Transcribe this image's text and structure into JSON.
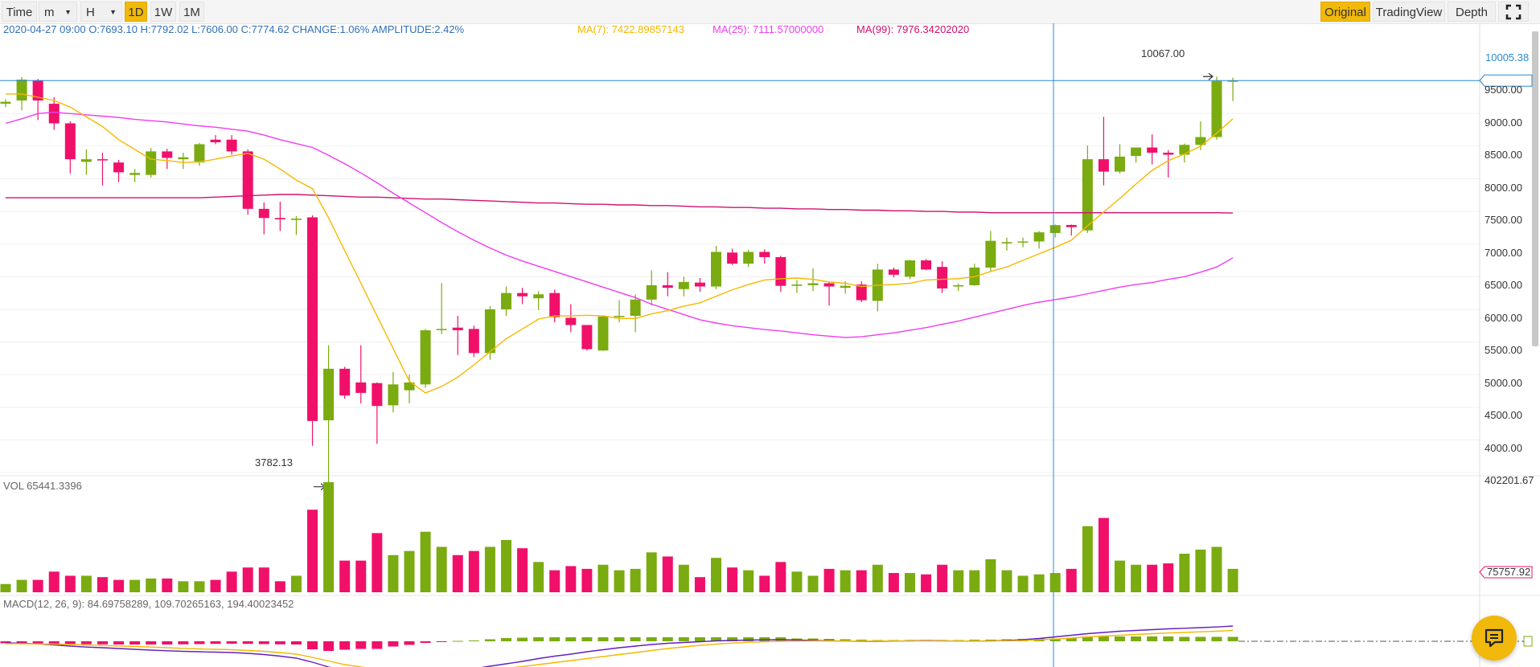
{
  "toolbar": {
    "time_label": "Time",
    "minute_select": "m",
    "hour_select": "H",
    "intervals": [
      "1D",
      "1W",
      "1M"
    ],
    "active_interval": "1D",
    "views": [
      "Original",
      "TradingView",
      "Depth"
    ],
    "active_view": "Original"
  },
  "info": {
    "bar": "2020-04-27 09:00  O:7693.10 H:7792.02 L:7606.00 C:7774.62 CHANGE:1.06% AMPLITUDE:2.42%",
    "ma7": "MA(7): 7422.89857143",
    "ma25": "MA(25): 7111.57000000",
    "ma99": "MA(99): 7976.34202020"
  },
  "price_axis": {
    "ticks": [
      "9500.00",
      "9000.00",
      "8500.00",
      "8000.00",
      "7500.00",
      "7000.00",
      "6500.00",
      "6000.00",
      "5500.00",
      "5000.00",
      "4500.00",
      "4000.00"
    ],
    "current_label": "10005.38",
    "high_label": "10067.00",
    "low_label": "3782.13"
  },
  "volume": {
    "label": "VOL 65441.3396",
    "max_label": "402201.67",
    "current_label": "75757.92"
  },
  "macd": {
    "label": "MACD(12, 26, 9): 84.69758289, 109.70265163, 194.40023452"
  },
  "colors": {
    "up": "#7aab10",
    "down": "#f0106a",
    "ma7": "#f5b800",
    "ma25": "#f03cf0",
    "ma99": "#d01070",
    "crosshair": "#2a8ad4",
    "accent": "#f0b90b"
  },
  "chart_data": {
    "type": "candlestick",
    "candles": [
      {
        "o": 9650,
        "h": 9720,
        "l": 9600,
        "c": 9680
      },
      {
        "o": 9700,
        "h": 10060,
        "l": 9550,
        "c": 10020
      },
      {
        "o": 10010,
        "h": 10030,
        "l": 9400,
        "c": 9700
      },
      {
        "o": 9650,
        "h": 9750,
        "l": 9250,
        "c": 9350
      },
      {
        "o": 9350,
        "h": 9380,
        "l": 8580,
        "c": 8800
      },
      {
        "o": 8760,
        "h": 8950,
        "l": 8560,
        "c": 8800
      },
      {
        "o": 8800,
        "h": 8900,
        "l": 8400,
        "c": 8790
      },
      {
        "o": 8750,
        "h": 8790,
        "l": 8450,
        "c": 8600
      },
      {
        "o": 8560,
        "h": 8650,
        "l": 8450,
        "c": 8590
      },
      {
        "o": 8560,
        "h": 8970,
        "l": 8520,
        "c": 8920
      },
      {
        "o": 8920,
        "h": 8960,
        "l": 8650,
        "c": 8820
      },
      {
        "o": 8800,
        "h": 8900,
        "l": 8650,
        "c": 8830
      },
      {
        "o": 8750,
        "h": 9050,
        "l": 8700,
        "c": 9030
      },
      {
        "o": 9100,
        "h": 9170,
        "l": 9030,
        "c": 9060
      },
      {
        "o": 9100,
        "h": 9170,
        "l": 8870,
        "c": 8920
      },
      {
        "o": 8920,
        "h": 8950,
        "l": 7950,
        "c": 8040
      },
      {
        "o": 8040,
        "h": 8140,
        "l": 7650,
        "c": 7900
      },
      {
        "o": 7900,
        "h": 8150,
        "l": 7700,
        "c": 7880
      },
      {
        "o": 7870,
        "h": 7930,
        "l": 7640,
        "c": 7890
      },
      {
        "o": 7910,
        "h": 7940,
        "l": 4410,
        "c": 4790
      },
      {
        "o": 4800,
        "h": 5950,
        "l": 3782.13,
        "c": 5590
      },
      {
        "o": 5590,
        "h": 5620,
        "l": 5130,
        "c": 5180
      },
      {
        "o": 5380,
        "h": 5950,
        "l": 5060,
        "c": 5220
      },
      {
        "o": 5370,
        "h": 5380,
        "l": 4440,
        "c": 5020
      },
      {
        "o": 5030,
        "h": 5540,
        "l": 4920,
        "c": 5350
      },
      {
        "o": 5260,
        "h": 5500,
        "l": 5060,
        "c": 5380
      },
      {
        "o": 5350,
        "h": 6200,
        "l": 5300,
        "c": 6180
      },
      {
        "o": 6200,
        "h": 6900,
        "l": 6120,
        "c": 6200
      },
      {
        "o": 6220,
        "h": 6400,
        "l": 5800,
        "c": 6180
      },
      {
        "o": 6200,
        "h": 6250,
        "l": 5770,
        "c": 5830
      },
      {
        "o": 5830,
        "h": 6550,
        "l": 5730,
        "c": 6500
      },
      {
        "o": 6500,
        "h": 6850,
        "l": 6400,
        "c": 6750
      },
      {
        "o": 6750,
        "h": 6830,
        "l": 6580,
        "c": 6700
      },
      {
        "o": 6670,
        "h": 6780,
        "l": 6490,
        "c": 6730
      },
      {
        "o": 6750,
        "h": 6800,
        "l": 6300,
        "c": 6380
      },
      {
        "o": 6370,
        "h": 6580,
        "l": 6150,
        "c": 6260
      },
      {
        "o": 6260,
        "h": 6260,
        "l": 5870,
        "c": 5890
      },
      {
        "o": 5870,
        "h": 6410,
        "l": 5860,
        "c": 6390
      },
      {
        "o": 6400,
        "h": 6640,
        "l": 6300,
        "c": 6400
      },
      {
        "o": 6400,
        "h": 6730,
        "l": 6150,
        "c": 6650
      },
      {
        "o": 6650,
        "h": 7100,
        "l": 6560,
        "c": 6870
      },
      {
        "o": 6870,
        "h": 7070,
        "l": 6700,
        "c": 6830
      },
      {
        "o": 6810,
        "h": 7000,
        "l": 6700,
        "c": 6920
      },
      {
        "o": 6910,
        "h": 6980,
        "l": 6770,
        "c": 6850
      },
      {
        "o": 6850,
        "h": 7470,
        "l": 6810,
        "c": 7380
      },
      {
        "o": 7370,
        "h": 7430,
        "l": 7180,
        "c": 7200
      },
      {
        "o": 7200,
        "h": 7410,
        "l": 7150,
        "c": 7380
      },
      {
        "o": 7380,
        "h": 7420,
        "l": 7200,
        "c": 7300
      },
      {
        "o": 7300,
        "h": 7320,
        "l": 6770,
        "c": 6860
      },
      {
        "o": 6860,
        "h": 6950,
        "l": 6750,
        "c": 6880
      },
      {
        "o": 6870,
        "h": 7130,
        "l": 6780,
        "c": 6900
      },
      {
        "o": 6900,
        "h": 6920,
        "l": 6560,
        "c": 6850
      },
      {
        "o": 6830,
        "h": 6930,
        "l": 6740,
        "c": 6860
      },
      {
        "o": 6880,
        "h": 6930,
        "l": 6610,
        "c": 6640
      },
      {
        "o": 6630,
        "h": 7200,
        "l": 6470,
        "c": 7110
      },
      {
        "o": 7110,
        "h": 7140,
        "l": 6990,
        "c": 7030
      },
      {
        "o": 7000,
        "h": 7260,
        "l": 6960,
        "c": 7250
      },
      {
        "o": 7250,
        "h": 7270,
        "l": 7100,
        "c": 7110
      },
      {
        "o": 7150,
        "h": 7240,
        "l": 6750,
        "c": 6820
      },
      {
        "o": 6850,
        "h": 6900,
        "l": 6780,
        "c": 6870
      },
      {
        "o": 6870,
        "h": 7200,
        "l": 6860,
        "c": 7140
      },
      {
        "o": 7140,
        "h": 7700,
        "l": 7080,
        "c": 7550
      },
      {
        "o": 7510,
        "h": 7600,
        "l": 7400,
        "c": 7530
      },
      {
        "o": 7530,
        "h": 7600,
        "l": 7450,
        "c": 7540
      },
      {
        "o": 7540,
        "h": 7700,
        "l": 7430,
        "c": 7680
      },
      {
        "o": 7670,
        "h": 7800,
        "l": 7600,
        "c": 7790
      },
      {
        "o": 7793,
        "h": 7800,
        "l": 7630,
        "c": 7760
      },
      {
        "o": 7710,
        "h": 9010,
        "l": 7670,
        "c": 8800
      },
      {
        "o": 8800,
        "h": 9450,
        "l": 8400,
        "c": 8610
      },
      {
        "o": 8610,
        "h": 9030,
        "l": 8580,
        "c": 8840
      },
      {
        "o": 8850,
        "h": 8970,
        "l": 8750,
        "c": 8980
      },
      {
        "o": 8980,
        "h": 9180,
        "l": 8720,
        "c": 8900
      },
      {
        "o": 8900,
        "h": 8940,
        "l": 8520,
        "c": 8870
      },
      {
        "o": 8870,
        "h": 9040,
        "l": 8750,
        "c": 9020
      },
      {
        "o": 9020,
        "h": 9380,
        "l": 8940,
        "c": 9140
      },
      {
        "o": 9140,
        "h": 10067,
        "l": 9100,
        "c": 10000
      },
      {
        "o": 10000,
        "h": 10050,
        "l": 9690,
        "c": 10005.38
      }
    ],
    "ma7": [
      9800,
      9800,
      9750,
      9700,
      9600,
      9450,
      9300,
      9100,
      8950,
      8800,
      8780,
      8750,
      8760,
      8800,
      8850,
      8890,
      8800,
      8650,
      8480,
      8350,
      7900,
      7400,
      6900,
      6400,
      5900,
      5400,
      5220,
      5320,
      5460,
      5650,
      5850,
      6050,
      6200,
      6350,
      6400,
      6400,
      6410,
      6400,
      6360,
      6360,
      6430,
      6480,
      6550,
      6600,
      6700,
      6800,
      6880,
      6950,
      6970,
      6980,
      6960,
      6920,
      6900,
      6850,
      6870,
      6880,
      6900,
      6950,
      6960,
      6970,
      7000,
      7080,
      7150,
      7250,
      7350,
      7450,
      7560,
      7780,
      7990,
      8200,
      8420,
      8630,
      8780,
      8880,
      9000,
      9200,
      9420
    ],
    "ma25": [
      9350,
      9420,
      9500,
      9520,
      9500,
      9480,
      9460,
      9440,
      9410,
      9390,
      9370,
      9340,
      9310,
      9290,
      9260,
      9230,
      9170,
      9100,
      9040,
      8980,
      8860,
      8730,
      8590,
      8440,
      8280,
      8130,
      7980,
      7830,
      7690,
      7560,
      7440,
      7330,
      7240,
      7160,
      7080,
      7000,
      6920,
      6840,
      6760,
      6680,
      6580,
      6500,
      6420,
      6340,
      6290,
      6250,
      6220,
      6190,
      6170,
      6140,
      6110,
      6090,
      6070,
      6080,
      6110,
      6140,
      6180,
      6220,
      6270,
      6320,
      6380,
      6440,
      6500,
      6560,
      6610,
      6650,
      6690,
      6740,
      6790,
      6840,
      6880,
      6910,
      6960,
      7000,
      7070,
      7150,
      7290
    ],
    "ma99": [
      8210,
      8210,
      8210,
      8210,
      8210,
      8210,
      8210,
      8210,
      8210,
      8210,
      8210,
      8210,
      8210,
      8220,
      8230,
      8240,
      8250,
      8260,
      8260,
      8250,
      8240,
      8230,
      8220,
      8220,
      8210,
      8200,
      8190,
      8190,
      8180,
      8170,
      8160,
      8150,
      8140,
      8130,
      8130,
      8120,
      8110,
      8110,
      8100,
      8100,
      8090,
      8090,
      8080,
      8070,
      8070,
      8060,
      8060,
      8050,
      8050,
      8040,
      8040,
      8030,
      8030,
      8020,
      8020,
      8010,
      8010,
      8000,
      8000,
      7990,
      7990,
      7980,
      7980,
      7980,
      7980,
      7980,
      7980,
      7980,
      7980,
      7980,
      7980,
      7980,
      7980,
      7980,
      7980,
      7980,
      7976
    ],
    "volume": [
      30,
      45,
      45,
      75,
      60,
      60,
      55,
      45,
      45,
      50,
      50,
      40,
      40,
      45,
      75,
      90,
      90,
      40,
      60,
      300,
      400,
      115,
      115,
      215,
      135,
      150,
      220,
      165,
      135,
      150,
      165,
      190,
      160,
      110,
      80,
      95,
      85,
      100,
      80,
      85,
      145,
      130,
      100,
      55,
      125,
      90,
      80,
      60,
      110,
      75,
      60,
      85,
      80,
      80,
      100,
      70,
      70,
      65,
      100,
      80,
      80,
      120,
      80,
      60,
      65,
      70,
      85,
      240,
      270,
      115,
      100,
      100,
      105,
      140,
      155,
      165,
      85
    ],
    "macd_hist": [
      -25,
      -25,
      -25,
      -30,
      -33,
      -36,
      -38,
      -40,
      -40,
      -40,
      -40,
      -38,
      -35,
      -32,
      -30,
      -32,
      -35,
      -38,
      -40,
      -100,
      -120,
      -105,
      -95,
      -95,
      -65,
      -45,
      -20,
      -5,
      5,
      10,
      25,
      40,
      45,
      50,
      50,
      50,
      50,
      50,
      50,
      50,
      50,
      50,
      50,
      50,
      50,
      50,
      50,
      50,
      50,
      35,
      35,
      30,
      25,
      20,
      15,
      15,
      15,
      15,
      15,
      15,
      20,
      20,
      25,
      30,
      35,
      35,
      45,
      60,
      60,
      60,
      60,
      60,
      60,
      55,
      55,
      55,
      55
    ],
    "macd_line": [
      -20,
      -25,
      -32,
      -45,
      -60,
      -72,
      -80,
      -90,
      -100,
      -110,
      -118,
      -125,
      -130,
      -135,
      -140,
      -150,
      -165,
      -185,
      -210,
      -260,
      -320,
      -360,
      -380,
      -395,
      -400,
      -400,
      -390,
      -380,
      -360,
      -340,
      -310,
      -280,
      -250,
      -215,
      -185,
      -160,
      -130,
      -105,
      -80,
      -60,
      -40,
      -25,
      -15,
      -5,
      5,
      10,
      15,
      18,
      20,
      15,
      10,
      5,
      3,
      0,
      0,
      2,
      5,
      8,
      5,
      3,
      2,
      5,
      10,
      20,
      35,
      55,
      75,
      95,
      110,
      125,
      135,
      145,
      155,
      162,
      170,
      178,
      190
    ],
    "macd_signal": [
      -30,
      -30,
      -32,
      -35,
      -40,
      -46,
      -52,
      -58,
      -65,
      -72,
      -80,
      -88,
      -95,
      -100,
      -105,
      -115,
      -125,
      -140,
      -160,
      -200,
      -245,
      -290,
      -320,
      -345,
      -365,
      -380,
      -385,
      -385,
      -380,
      -370,
      -355,
      -335,
      -315,
      -290,
      -265,
      -240,
      -215,
      -190,
      -165,
      -140,
      -115,
      -90,
      -70,
      -50,
      -35,
      -22,
      -12,
      -5,
      0,
      2,
      3,
      3,
      3,
      3,
      3,
      3,
      3,
      3,
      3,
      3,
      3,
      4,
      6,
      10,
      18,
      28,
      40,
      55,
      65,
      75,
      85,
      95,
      103,
      110,
      118,
      125,
      135
    ]
  }
}
